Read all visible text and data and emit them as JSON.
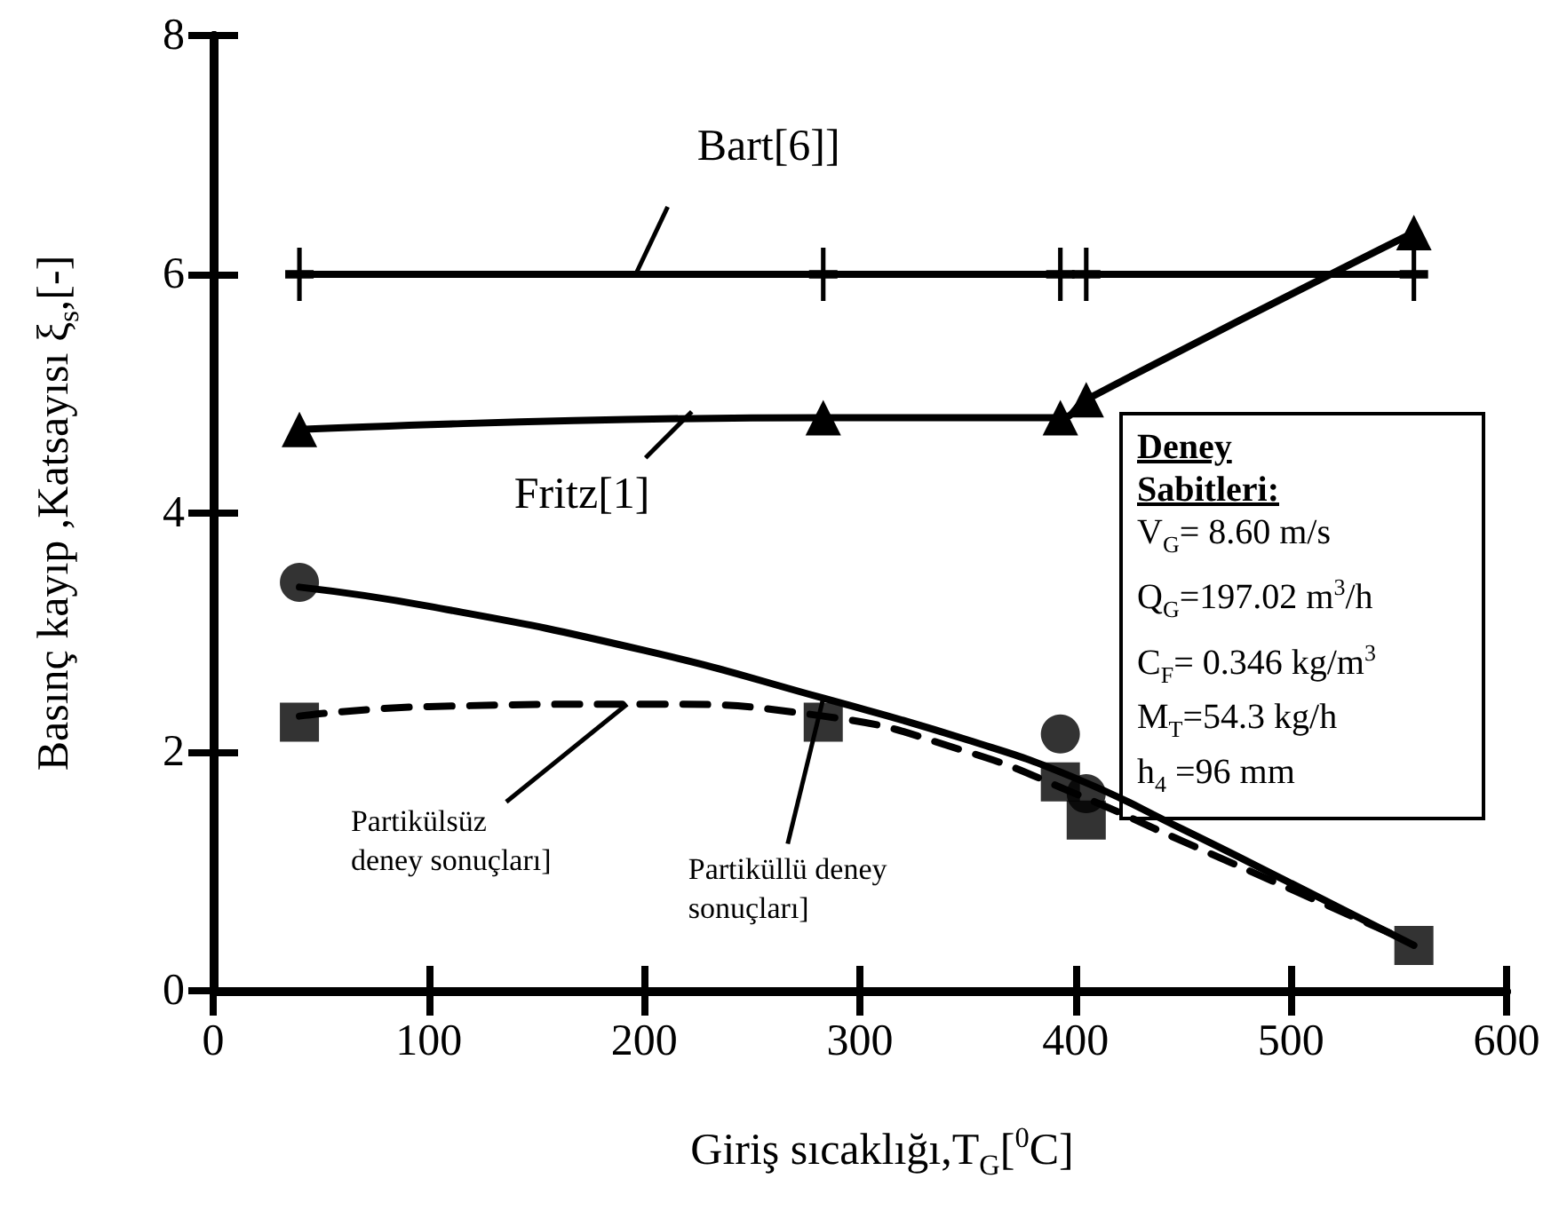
{
  "chart_data": {
    "type": "line",
    "xlabel": "Giriş sıcaklığı,T$_{G}$[$^{0}$C]",
    "ylabel": "Basınç kayıp  ,Katsayısı ξ$_{s}$,[-]",
    "xlim": [
      0,
      600
    ],
    "xticks": [
      0,
      100,
      200,
      300,
      400,
      500,
      600
    ],
    "ylim": [
      0,
      8
    ],
    "yticks": [
      0,
      2,
      4,
      6,
      8
    ],
    "grid": false,
    "series": [
      {
        "color": "#000000",
        "marker": "cross",
        "line_style": "solid",
        "x": [
          40,
          283,
          393,
          405,
          557
        ],
        "values": [
          6,
          6,
          6,
          6,
          6
        ]
      },
      {
        "color": "#000000",
        "marker": "triangle",
        "line_style": "solid",
        "x": [
          40,
          283,
          393,
          405,
          557
        ],
        "values": [
          4.7,
          4.8,
          4.8,
          4.95,
          6.35
        ]
      },
      {
        "color": "#000000",
        "marker": "none",
        "line_style": "solid",
        "x": [
          40,
          100,
          200,
          283,
          350,
          400,
          450,
          500,
          557
        ],
        "values": [
          3.38,
          3.22,
          2.85,
          2.45,
          2.1,
          1.78,
          1.35,
          0.9,
          0.38
        ]
      },
      {
        "color": "#000000",
        "marker": "none",
        "line_style": "dashed",
        "x": [
          40,
          100,
          200,
          283,
          350,
          400,
          450,
          500,
          550
        ],
        "values": [
          2.3,
          2.38,
          2.4,
          2.3,
          2.0,
          1.65,
          1.25,
          0.85,
          0.45
        ]
      },
      {
        "type": "scatter",
        "color": "#000000",
        "marker": "circle",
        "x": [
          40,
          393,
          405
        ],
        "values": [
          3.42,
          2.15,
          1.65
        ]
      },
      {
        "type": "scatter",
        "color": "#000000",
        "marker": "square",
        "x": [
          40,
          283,
          393,
          405,
          557
        ],
        "values": [
          2.25,
          2.25,
          1.75,
          1.43,
          0.38
        ]
      }
    ],
    "annotations": [
      {
        "text": "Bart[6]]",
        "x": 196,
        "y": 6
      },
      {
        "text": "Fritz[1]",
        "x": 222,
        "y": 4.85
      },
      {
        "text": "Partikülsüz\ndeney sonuçları]",
        "x": 192,
        "y": 2.4
      },
      {
        "text": "Partiküllü deney\nsonuçları]",
        "x": 283,
        "y": 2.45
      },
      "Deney Sabitleri:",
      "V$_{G}$= 8.60 m/s",
      "Q$_{G}$=197.02 m$^{3}$/h",
      "C$_{F}$= 0.346 kg/m$^{3}$",
      "M$_{T}$=54.3 kg/h",
      "h$_{4}$ =96 mm"
    ]
  }
}
